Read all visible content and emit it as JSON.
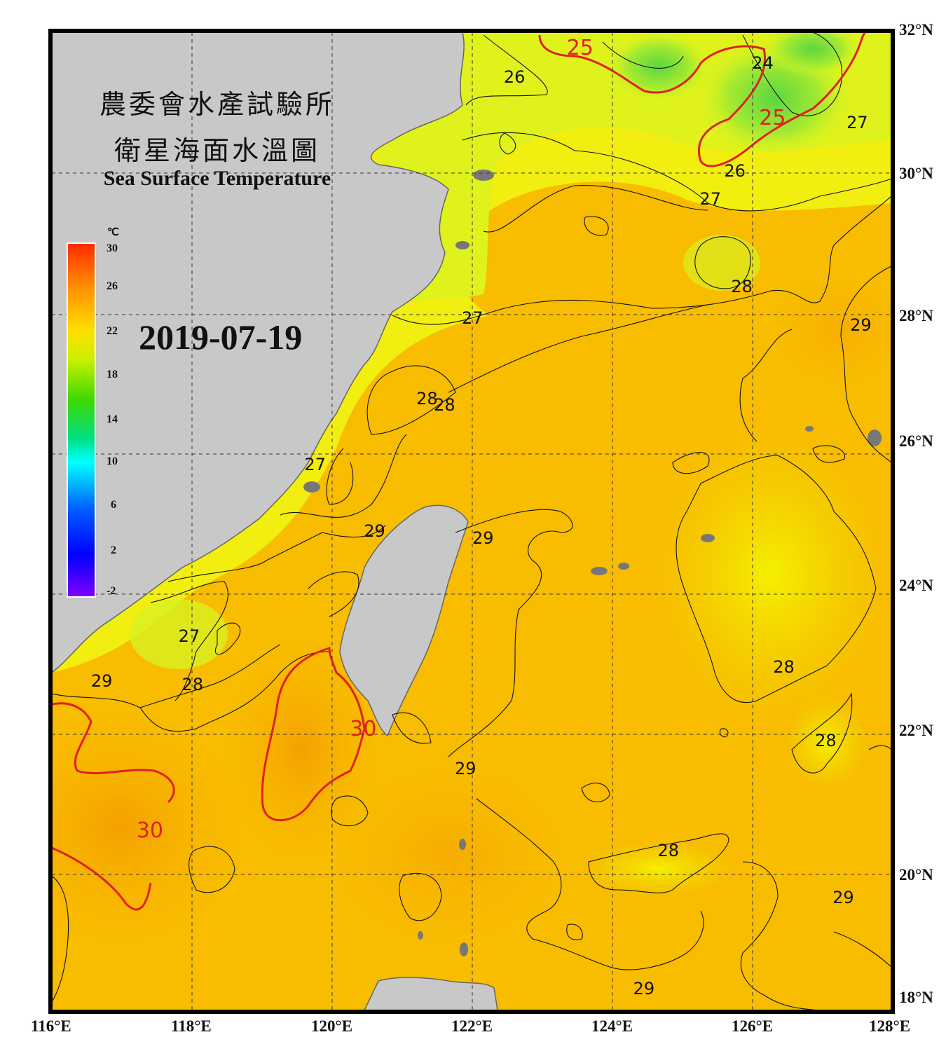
{
  "title": {
    "line1": "農委會水產試驗所",
    "line2": "衛星海面水溫圖",
    "english": "Sea Surface Temperature"
  },
  "date": "2019-07-19",
  "colorbar": {
    "unit": "℃",
    "labels": [
      "30",
      "26",
      "22",
      "18",
      "14",
      "10",
      "6",
      "2",
      "-2"
    ],
    "range": [
      -2,
      30
    ],
    "colors": [
      "#ff2a00",
      "#ffa000",
      "#ffff00",
      "#66e000",
      "#00d000",
      "#00ffff",
      "#0060ff",
      "#0000ff",
      "#8000ff"
    ]
  },
  "axes": {
    "lon_labels": [
      "116°E",
      "118°E",
      "120°E",
      "122°E",
      "124°E",
      "126°E",
      "128°E"
    ],
    "lat_labels": [
      "32°N",
      "30°N",
      "28°N",
      "26°N",
      "24°N",
      "22°N",
      "20°N",
      "18°N"
    ],
    "lon_range": [
      116,
      128
    ],
    "lat_range": [
      18,
      32
    ]
  },
  "contour_labels": [
    {
      "text": "25",
      "lon": 123.5,
      "lat": 31.8,
      "color": "#e02020"
    },
    {
      "text": "26",
      "lon": 122.6,
      "lat": 31.35,
      "color": "#111111"
    },
    {
      "text": "24",
      "lon": 126.15,
      "lat": 31.55,
      "color": "#111111"
    },
    {
      "text": "25",
      "lon": 126.25,
      "lat": 30.8,
      "color": "#e02020"
    },
    {
      "text": "26",
      "lon": 125.75,
      "lat": 30.0,
      "color": "#111111"
    },
    {
      "text": "27",
      "lon": 127.5,
      "lat": 30.7,
      "color": "#111111"
    },
    {
      "text": "27",
      "lon": 125.4,
      "lat": 29.6,
      "color": "#111111"
    },
    {
      "text": "28",
      "lon": 125.85,
      "lat": 28.35,
      "color": "#111111"
    },
    {
      "text": "27",
      "lon": 122.0,
      "lat": 27.9,
      "color": "#111111"
    },
    {
      "text": "29",
      "lon": 127.55,
      "lat": 27.8,
      "color": "#111111"
    },
    {
      "text": "28",
      "lon": 121.35,
      "lat": 26.75,
      "color": "#111111"
    },
    {
      "text": "28",
      "lon": 121.6,
      "lat": 26.65,
      "color": "#111111"
    },
    {
      "text": "27",
      "lon": 119.75,
      "lat": 25.8,
      "color": "#111111"
    },
    {
      "text": "29",
      "lon": 120.6,
      "lat": 24.85,
      "color": "#111111"
    },
    {
      "text": "29",
      "lon": 122.15,
      "lat": 24.75,
      "color": "#111111"
    },
    {
      "text": "27",
      "lon": 117.95,
      "lat": 23.35,
      "color": "#111111"
    },
    {
      "text": "29",
      "lon": 116.7,
      "lat": 22.7,
      "color": "#111111"
    },
    {
      "text": "28",
      "lon": 118.0,
      "lat": 22.65,
      "color": "#111111"
    },
    {
      "text": "28",
      "lon": 126.45,
      "lat": 22.9,
      "color": "#111111"
    },
    {
      "text": "30",
      "lon": 120.4,
      "lat": 22.05,
      "color": "#e02020"
    },
    {
      "text": "28",
      "lon": 127.05,
      "lat": 21.85,
      "color": "#111111"
    },
    {
      "text": "29",
      "lon": 121.9,
      "lat": 21.45,
      "color": "#111111"
    },
    {
      "text": "30",
      "lon": 117.35,
      "lat": 20.6,
      "color": "#e02020"
    },
    {
      "text": "28",
      "lon": 124.8,
      "lat": 20.28,
      "color": "#111111"
    },
    {
      "text": "29",
      "lon": 127.3,
      "lat": 19.6,
      "color": "#111111"
    },
    {
      "text": "29",
      "lon": 124.45,
      "lat": 18.3,
      "color": "#111111"
    }
  ]
}
